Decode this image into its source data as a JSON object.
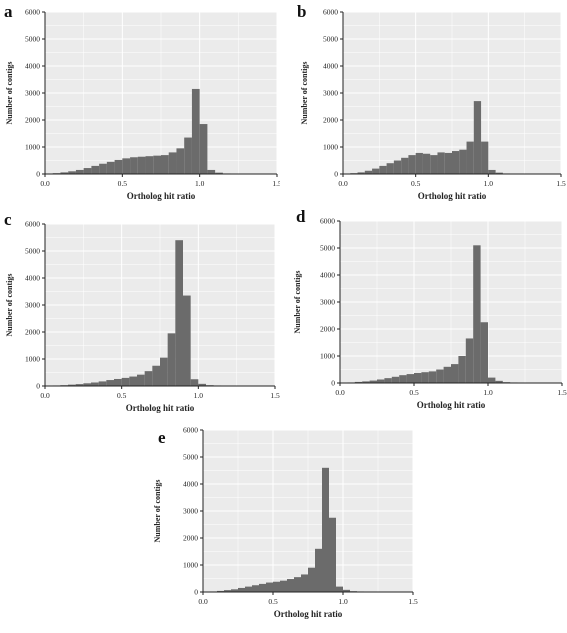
{
  "chart_data": [
    {
      "panel": "a",
      "type": "bar",
      "xlabel": "Ortholog hit ratio",
      "ylabel": "Number of contigs",
      "ylim": [
        0,
        6000
      ],
      "xlim": [
        0,
        1.5
      ],
      "xticks": [
        "0.0",
        "0.5",
        "1.0",
        "1.5"
      ],
      "yticks": [
        "0",
        "1000",
        "2000",
        "3000",
        "4000",
        "5000",
        "6000"
      ],
      "bin_width": 0.05,
      "bin_start": 0.0,
      "values": [
        10,
        30,
        60,
        100,
        150,
        220,
        300,
        380,
        450,
        520,
        580,
        620,
        640,
        660,
        680,
        700,
        800,
        950,
        1350,
        3150,
        1850,
        150,
        50,
        20,
        10,
        5,
        5,
        5,
        5,
        5
      ],
      "grid": true
    },
    {
      "panel": "b",
      "type": "bar",
      "xlabel": "Ortholog hit ratio",
      "ylabel": "Number of contigs",
      "ylim": [
        0,
        6000
      ],
      "xlim": [
        0,
        1.5
      ],
      "xticks": [
        "0.0",
        "0.5",
        "1.0",
        "1.5"
      ],
      "yticks": [
        "0",
        "1000",
        "2000",
        "3000",
        "4000",
        "5000",
        "6000"
      ],
      "bin_width": 0.05,
      "bin_start": 0.0,
      "values": [
        10,
        30,
        60,
        120,
        200,
        300,
        400,
        500,
        600,
        700,
        780,
        750,
        700,
        800,
        780,
        850,
        900,
        1200,
        2700,
        1200,
        150,
        50,
        20,
        10,
        5,
        5,
        5,
        5,
        5,
        5
      ],
      "grid": true
    },
    {
      "panel": "c",
      "type": "bar",
      "xlabel": "Ortholog hit ratio",
      "ylabel": "Number of contigs",
      "ylim": [
        0,
        6000
      ],
      "xlim": [
        0,
        1.5
      ],
      "xticks": [
        "0.0",
        "0.5",
        "1.0",
        "1.5"
      ],
      "yticks": [
        "0",
        "1000",
        "2000",
        "3000",
        "4000",
        "5000",
        "6000"
      ],
      "bin_width": 0.05,
      "bin_start": 0.0,
      "values": [
        10,
        20,
        30,
        50,
        70,
        100,
        130,
        170,
        220,
        260,
        300,
        350,
        420,
        550,
        750,
        1050,
        1950,
        5400,
        3350,
        250,
        80,
        30,
        20,
        10,
        5,
        5,
        5,
        5,
        5,
        5
      ],
      "grid": true
    },
    {
      "panel": "d",
      "type": "bar",
      "xlabel": "Ortholog hit ratio",
      "ylabel": "Number of contigs",
      "ylim": [
        0,
        6000
      ],
      "xlim": [
        0,
        1.5
      ],
      "xticks": [
        "0.0",
        "0.5",
        "1.0",
        "1.5"
      ],
      "yticks": [
        "0",
        "1000",
        "2000",
        "3000",
        "4000",
        "5000",
        "6000"
      ],
      "bin_width": 0.05,
      "bin_start": 0.0,
      "values": [
        10,
        20,
        40,
        60,
        90,
        130,
        180,
        230,
        290,
        330,
        370,
        400,
        430,
        500,
        600,
        700,
        1000,
        1650,
        5100,
        2250,
        200,
        80,
        30,
        20,
        10,
        5,
        5,
        5,
        5,
        5
      ],
      "grid": true
    },
    {
      "panel": "e",
      "type": "bar",
      "xlabel": "Ortholog hit ratio",
      "ylabel": "Number of contigs",
      "ylim": [
        0,
        6000
      ],
      "xlim": [
        0,
        1.5
      ],
      "xticks": [
        "0.0",
        "0.5",
        "1.0",
        "1.5"
      ],
      "yticks": [
        "0",
        "1000",
        "2000",
        "3000",
        "4000",
        "5000",
        "6000"
      ],
      "bin_width": 0.05,
      "bin_start": 0.0,
      "values": [
        10,
        20,
        40,
        70,
        100,
        150,
        200,
        250,
        300,
        350,
        380,
        420,
        480,
        550,
        650,
        900,
        1600,
        4600,
        2750,
        200,
        80,
        30,
        20,
        10,
        5,
        5,
        5,
        5,
        5,
        5
      ],
      "grid": true
    }
  ],
  "style": {
    "bar_color": "#6b6b6b",
    "plot_bg": "#ebebeb",
    "grid_color": "#ffffff"
  }
}
